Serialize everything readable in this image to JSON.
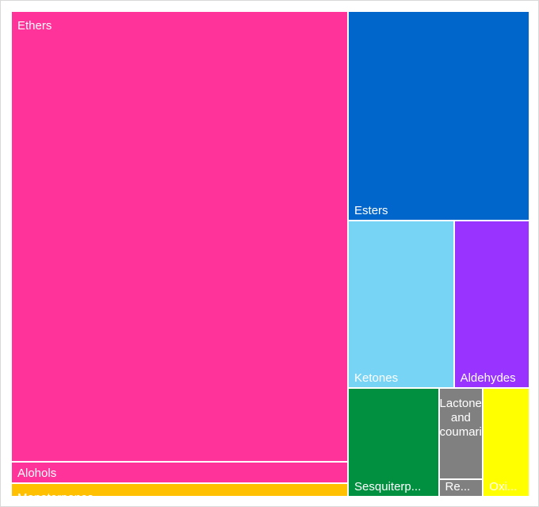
{
  "chart_data": {
    "type": "treemap",
    "categories": [
      "Ethers",
      "Alohols",
      "Monoterpenes",
      "Esters",
      "Ketones",
      "Aldehydes",
      "Sesquiterp...",
      "Lactones and coumarins",
      "Re...",
      "Oxi..."
    ],
    "values": [
      60,
      2.8,
      1.8,
      15,
      7,
      5,
      3.9,
      1.6,
      0.3,
      2
    ],
    "colors": [
      "#ff3399",
      "#ff3399",
      "#ffc000",
      "#0066cc",
      "#77d4f5",
      "#9933ff",
      "#009040",
      "#808080",
      "#808080",
      "#ffff00"
    ]
  }
}
